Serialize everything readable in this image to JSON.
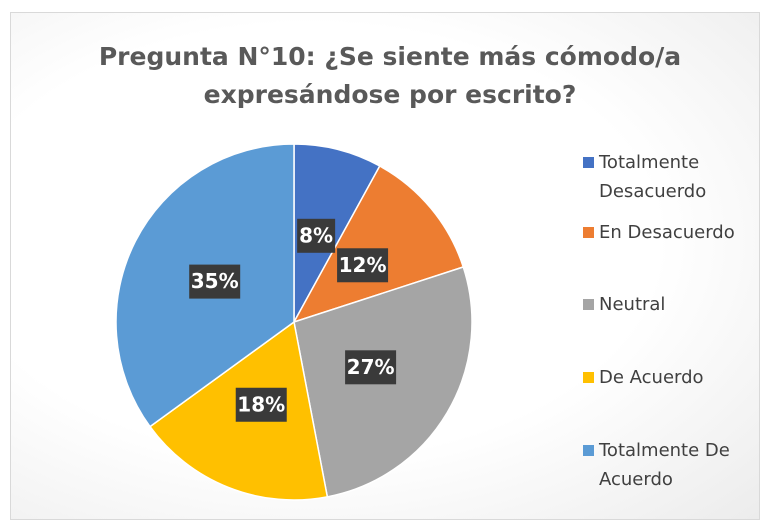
{
  "chart_data": {
    "type": "pie",
    "title": "Pregunta N°10: ¿Se siente más cómodo/a expresándose por escrito?",
    "categories": [
      "Totalmente Desacuerdo",
      "En Desacuerdo",
      "Neutral",
      "De Acuerdo",
      "Totalmente De Acuerdo"
    ],
    "values": [
      8,
      12,
      27,
      18,
      35
    ],
    "value_labels": [
      "8%",
      "12%",
      "27%",
      "18%",
      "35%"
    ],
    "colors": [
      "#4472c4",
      "#ed7d31",
      "#a5a5a5",
      "#ffc000",
      "#5b9bd5"
    ],
    "legend": "right"
  }
}
